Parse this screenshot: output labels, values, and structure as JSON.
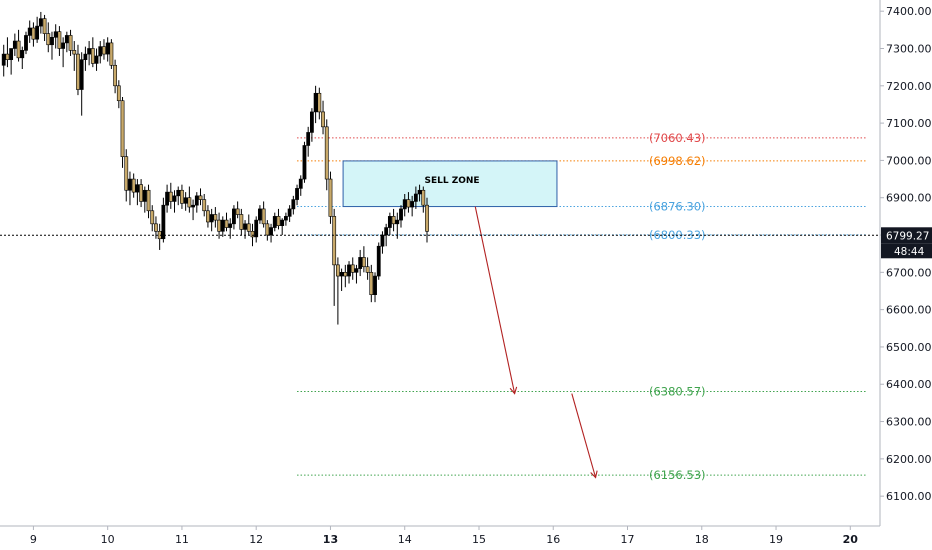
{
  "chart_data": {
    "type": "candlestick",
    "y_axis": {
      "range": [
        6020,
        7430
      ],
      "ticks": [
        "7400.00",
        "7300.00",
        "7200.00",
        "7100.00",
        "7000.00",
        "6900.00",
        "6800.00",
        "6700.00",
        "6600.00",
        "6500.00",
        "6400.00",
        "6300.00",
        "6200.00",
        "6100.00"
      ],
      "tick_values": [
        7400,
        7300,
        7200,
        7100,
        7000,
        6900,
        6800,
        6700,
        6600,
        6500,
        6400,
        6300,
        6200,
        6100
      ]
    },
    "x_axis": {
      "range": [
        8.55,
        20.4
      ],
      "ticks": [
        {
          "label": "9",
          "value": 9,
          "bold": false
        },
        {
          "label": "10",
          "value": 10,
          "bold": false
        },
        {
          "label": "11",
          "value": 11,
          "bold": false
        },
        {
          "label": "12",
          "value": 12,
          "bold": false
        },
        {
          "label": "13",
          "value": 13,
          "bold": true
        },
        {
          "label": "14",
          "value": 14,
          "bold": false
        },
        {
          "label": "15",
          "value": 15,
          "bold": false
        },
        {
          "label": "16",
          "value": 16,
          "bold": false
        },
        {
          "label": "17",
          "value": 17,
          "bold": false
        },
        {
          "label": "18",
          "value": 18,
          "bold": false
        },
        {
          "label": "19",
          "value": 19,
          "bold": false
        },
        {
          "label": "20",
          "value": 20,
          "bold": true
        }
      ]
    },
    "levels": [
      {
        "label": "(7060.43)",
        "value": 7060.43,
        "color": "#e0484a",
        "x_start": 12.55
      },
      {
        "label": "(6998.62)",
        "value": 6998.62,
        "color": "#f57c00",
        "x_start": 12.55
      },
      {
        "label": "(6876.30)",
        "value": 6876.3,
        "color": "#4aa3df",
        "x_start": 12.55
      },
      {
        "label": "(6800.33)",
        "value": 6800.33,
        "color": "#4aa3df",
        "x_start": 12.55
      },
      {
        "label": "(6380.57)",
        "value": 6380.57,
        "color": "#3fa34d",
        "x_start": 12.55
      },
      {
        "label": "(6156.53)",
        "value": 6156.53,
        "color": "#3fa34d",
        "x_start": 12.55
      }
    ],
    "sell_zone": {
      "label": "SELL ZONE",
      "x_start": 13.17,
      "x_end": 16.05,
      "y_low": 6876.3,
      "y_high": 6998.62,
      "fill": "#d4f5f8",
      "stroke": "#2d5fa8"
    },
    "arrows": [
      {
        "from": [
          14.95,
          6876
        ],
        "to": [
          15.48,
          6375
        ],
        "color": "#b22222"
      },
      {
        "from": [
          16.25,
          6375
        ],
        "to": [
          16.57,
          6150
        ],
        "color": "#b22222"
      }
    ],
    "current_price": {
      "value": 6799.27,
      "label": "6799.27",
      "countdown": "48:44"
    },
    "candles": [
      [
        8.6,
        7255,
        7310,
        7225,
        7285
      ],
      [
        8.65,
        7285,
        7330,
        7250,
        7270
      ],
      [
        8.7,
        7270,
        7300,
        7230,
        7300
      ],
      [
        8.75,
        7300,
        7340,
        7280,
        7320
      ],
      [
        8.8,
        7320,
        7350,
        7265,
        7275
      ],
      [
        8.85,
        7275,
        7305,
        7245,
        7295
      ],
      [
        8.9,
        7295,
        7345,
        7285,
        7335
      ],
      [
        8.95,
        7335,
        7375,
        7315,
        7355
      ],
      [
        9.0,
        7355,
        7370,
        7305,
        7325
      ],
      [
        9.05,
        7325,
        7385,
        7315,
        7360
      ],
      [
        9.1,
        7360,
        7398,
        7340,
        7380
      ],
      [
        9.15,
        7380,
        7390,
        7320,
        7340
      ],
      [
        9.2,
        7340,
        7370,
        7290,
        7310
      ],
      [
        9.25,
        7310,
        7345,
        7270,
        7330
      ],
      [
        9.3,
        7330,
        7365,
        7300,
        7345
      ],
      [
        9.35,
        7345,
        7360,
        7280,
        7300
      ],
      [
        9.4,
        7300,
        7330,
        7250,
        7315
      ],
      [
        9.45,
        7315,
        7345,
        7290,
        7335
      ],
      [
        9.5,
        7335,
        7350,
        7280,
        7295
      ],
      [
        9.55,
        7295,
        7320,
        7240,
        7285
      ],
      [
        9.6,
        7285,
        7310,
        7175,
        7190
      ],
      [
        9.65,
        7190,
        7290,
        7120,
        7270
      ],
      [
        9.7,
        7270,
        7305,
        7240,
        7285
      ],
      [
        9.75,
        7285,
        7320,
        7255,
        7300
      ],
      [
        9.8,
        7300,
        7330,
        7250,
        7260
      ],
      [
        9.85,
        7260,
        7300,
        7240,
        7280
      ],
      [
        9.9,
        7280,
        7320,
        7260,
        7305
      ],
      [
        9.95,
        7305,
        7325,
        7270,
        7285
      ],
      [
        10.0,
        7285,
        7330,
        7265,
        7315
      ],
      [
        10.05,
        7315,
        7325,
        7245,
        7255
      ],
      [
        10.1,
        7255,
        7270,
        7180,
        7200
      ],
      [
        10.15,
        7200,
        7215,
        7140,
        7160
      ],
      [
        10.2,
        7160,
        7170,
        6980,
        7010
      ],
      [
        10.25,
        7010,
        7030,
        6890,
        6920
      ],
      [
        10.3,
        6920,
        6970,
        6880,
        6950
      ],
      [
        10.35,
        6950,
        6965,
        6900,
        6915
      ],
      [
        10.4,
        6915,
        6950,
        6880,
        6935
      ],
      [
        10.45,
        6935,
        6950,
        6875,
        6890
      ],
      [
        10.5,
        6890,
        6930,
        6860,
        6920
      ],
      [
        10.55,
        6920,
        6935,
        6845,
        6865
      ],
      [
        10.6,
        6865,
        6880,
        6810,
        6830
      ],
      [
        10.65,
        6830,
        6850,
        6790,
        6810
      ],
      [
        10.7,
        6810,
        6830,
        6760,
        6790
      ],
      [
        10.75,
        6790,
        6900,
        6780,
        6880
      ],
      [
        10.8,
        6880,
        6935,
        6860,
        6915
      ],
      [
        10.85,
        6915,
        6940,
        6870,
        6890
      ],
      [
        10.9,
        6890,
        6920,
        6860,
        6905
      ],
      [
        10.95,
        6905,
        6930,
        6880,
        6920
      ],
      [
        11.0,
        6920,
        6935,
        6870,
        6885
      ],
      [
        11.05,
        6885,
        6915,
        6865,
        6900
      ],
      [
        11.1,
        6900,
        6930,
        6860,
        6875
      ],
      [
        11.15,
        6875,
        6895,
        6840,
        6880
      ],
      [
        11.2,
        6880,
        6915,
        6860,
        6905
      ],
      [
        11.25,
        6905,
        6925,
        6880,
        6895
      ],
      [
        11.3,
        6895,
        6910,
        6850,
        6865
      ],
      [
        11.35,
        6865,
        6880,
        6820,
        6835
      ],
      [
        11.4,
        6835,
        6870,
        6810,
        6855
      ],
      [
        11.45,
        6855,
        6875,
        6820,
        6840
      ],
      [
        11.5,
        6840,
        6860,
        6790,
        6810
      ],
      [
        11.55,
        6810,
        6850,
        6795,
        6840
      ],
      [
        11.6,
        6840,
        6860,
        6810,
        6820
      ],
      [
        11.65,
        6820,
        6845,
        6790,
        6830
      ],
      [
        11.7,
        6830,
        6880,
        6815,
        6870
      ],
      [
        11.75,
        6870,
        6890,
        6845,
        6855
      ],
      [
        11.8,
        6855,
        6870,
        6800,
        6815
      ],
      [
        11.85,
        6815,
        6840,
        6790,
        6830
      ],
      [
        11.9,
        6830,
        6855,
        6800,
        6810
      ],
      [
        11.95,
        6810,
        6830,
        6770,
        6795
      ],
      [
        12.0,
        6795,
        6850,
        6780,
        6840
      ],
      [
        12.05,
        6840,
        6880,
        6830,
        6870
      ],
      [
        12.1,
        6870,
        6890,
        6820,
        6830
      ],
      [
        12.15,
        6830,
        6840,
        6785,
        6800
      ],
      [
        12.2,
        6800,
        6830,
        6780,
        6820
      ],
      [
        12.25,
        6820,
        6860,
        6810,
        6850
      ],
      [
        12.3,
        6850,
        6870,
        6815,
        6825
      ],
      [
        12.35,
        6825,
        6845,
        6800,
        6840
      ],
      [
        12.4,
        6840,
        6860,
        6825,
        6850
      ],
      [
        12.45,
        6850,
        6880,
        6835,
        6870
      ],
      [
        12.5,
        6870,
        6905,
        6855,
        6895
      ],
      [
        12.55,
        6895,
        6935,
        6880,
        6925
      ],
      [
        12.6,
        6925,
        6960,
        6905,
        6950
      ],
      [
        12.65,
        6950,
        7050,
        6940,
        7040
      ],
      [
        12.7,
        7040,
        7090,
        7010,
        7075
      ],
      [
        12.75,
        7075,
        7140,
        7050,
        7130
      ],
      [
        12.8,
        7130,
        7200,
        7100,
        7180
      ],
      [
        12.85,
        7180,
        7195,
        7110,
        7130
      ],
      [
        12.9,
        7130,
        7160,
        7070,
        7090
      ],
      [
        12.95,
        7090,
        7110,
        6920,
        6950
      ],
      [
        13.0,
        6950,
        6970,
        6830,
        6850
      ],
      [
        13.05,
        6850,
        6870,
        6610,
        6720
      ],
      [
        13.1,
        6720,
        6740,
        6560,
        6690
      ],
      [
        13.15,
        6690,
        6710,
        6650,
        6700
      ],
      [
        13.2,
        6700,
        6720,
        6660,
        6690
      ],
      [
        13.25,
        6690,
        6730,
        6670,
        6720
      ],
      [
        13.3,
        6720,
        6740,
        6680,
        6700
      ],
      [
        13.35,
        6700,
        6720,
        6670,
        6710
      ],
      [
        13.4,
        6710,
        6760,
        6690,
        6740
      ],
      [
        13.45,
        6740,
        6770,
        6700,
        6715
      ],
      [
        13.5,
        6715,
        6740,
        6680,
        6700
      ],
      [
        13.55,
        6700,
        6720,
        6620,
        6640
      ],
      [
        13.6,
        6640,
        6700,
        6620,
        6690
      ],
      [
        13.65,
        6690,
        6780,
        6680,
        6770
      ],
      [
        13.7,
        6770,
        6810,
        6750,
        6800
      ],
      [
        13.75,
        6800,
        6830,
        6770,
        6820
      ],
      [
        13.8,
        6820,
        6860,
        6800,
        6850
      ],
      [
        13.85,
        6850,
        6870,
        6810,
        6830
      ],
      [
        13.9,
        6830,
        6860,
        6790,
        6840
      ],
      [
        13.95,
        6840,
        6880,
        6820,
        6870
      ],
      [
        14.0,
        6870,
        6910,
        6850,
        6895
      ],
      [
        14.05,
        6895,
        6915,
        6860,
        6875
      ],
      [
        14.1,
        6875,
        6905,
        6850,
        6890
      ],
      [
        14.15,
        6890,
        6930,
        6870,
        6910
      ],
      [
        14.2,
        6910,
        6935,
        6890,
        6920
      ],
      [
        14.25,
        6920,
        6930,
        6860,
        6880
      ],
      [
        14.3,
        6880,
        6900,
        6780,
        6810
      ]
    ]
  }
}
